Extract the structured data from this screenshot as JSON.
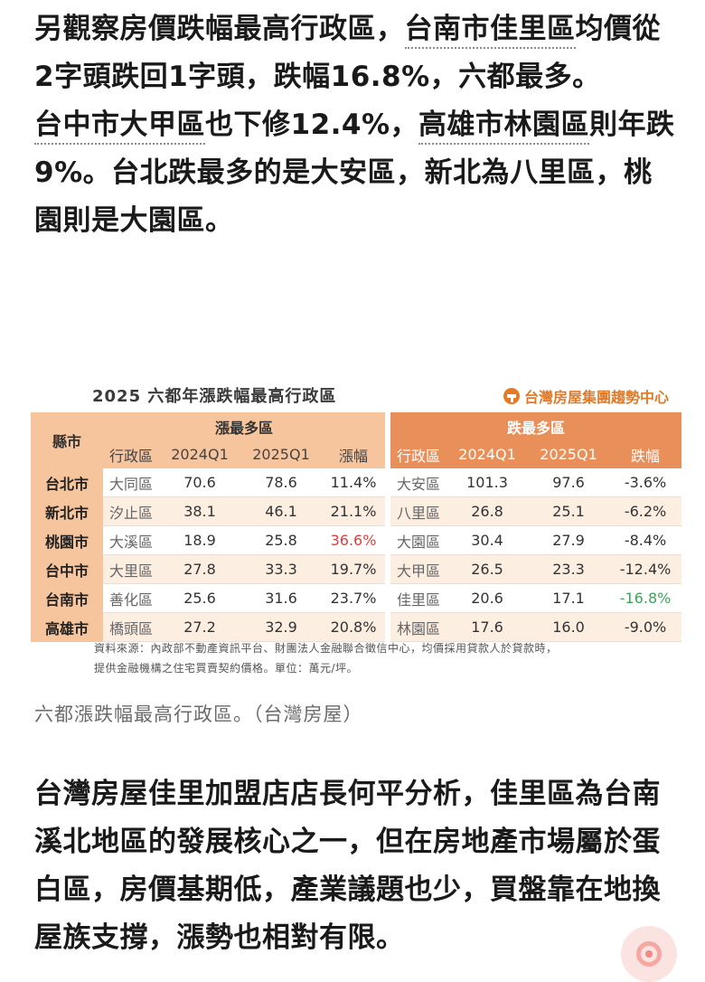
{
  "article": {
    "para1": {
      "t1": "另觀察房價跌幅最高行政區，",
      "link1": "台南市佳里區",
      "t2": "均價從2字頭跌回1字頭，跌幅16.8%，六都最多。",
      "link2": "台中市大甲區",
      "t3": "也下修12.4%，",
      "link3": "高雄市林園區",
      "t4": "則年跌9%。台北跌最多的是大安區，新北為八里區，桃園則是大園區。"
    },
    "para2": "台灣房屋佳里加盟店店長何平分析，佳里區為台南溪北地區的發展核心之一，但在房地產市場屬於蛋白區，房價基期低，產業議題也少，買盤靠在地換屋族支撐，漲勢也相對有限。",
    "caption": "六都漲跌幅最高行政區。（台灣房屋）"
  },
  "figure": {
    "title": "2025 六都年漲跌幅最高行政區",
    "brand": "台灣房屋集團趨勢中心",
    "group_city": "縣市",
    "group_rise": "漲最多區",
    "group_fall": "跌最多區",
    "col_district": "行政區",
    "col_q1": "2024Q1",
    "col_q2": "2025Q1",
    "col_rise": "漲幅",
    "col_fall": "跌幅",
    "rows": [
      {
        "city": "台北市",
        "rd": "大同區",
        "r1": "70.6",
        "r2": "78.6",
        "rp": "11.4%",
        "fd": "大安區",
        "f1": "101.3",
        "f2": "97.6",
        "fp": "-3.6%"
      },
      {
        "city": "新北市",
        "rd": "汐止區",
        "r1": "38.1",
        "r2": "46.1",
        "rp": "21.1%",
        "fd": "八里區",
        "f1": "26.8",
        "f2": "25.1",
        "fp": "-6.2%"
      },
      {
        "city": "桃園市",
        "rd": "大溪區",
        "r1": "18.9",
        "r2": "25.8",
        "rp": "36.6%",
        "fd": "大園區",
        "f1": "30.4",
        "f2": "27.9",
        "fp": "-8.4%"
      },
      {
        "city": "台中市",
        "rd": "大里區",
        "r1": "27.8",
        "r2": "33.3",
        "rp": "19.7%",
        "fd": "大甲區",
        "f1": "26.5",
        "f2": "23.3",
        "fp": "-12.4%"
      },
      {
        "city": "台南市",
        "rd": "善化區",
        "r1": "25.6",
        "r2": "31.6",
        "rp": "23.7%",
        "fd": "佳里區",
        "f1": "20.6",
        "f2": "17.1",
        "fp": "-16.8%"
      },
      {
        "city": "高雄市",
        "rd": "橋頭區",
        "r1": "27.2",
        "r2": "32.9",
        "rp": "20.8%",
        "fd": "林園區",
        "f1": "17.6",
        "f2": "16.0",
        "fp": "-9.0%"
      }
    ],
    "note1": "資料來源：內政部不動產資訊平台、財團法人金融聯合徵信中心，均價採用貸款人於貸款時，",
    "note2": "提供金融機構之住宅買賣契約價格。單位：萬元/坪。",
    "colors": {
      "header_light": "#f7c59d",
      "header_dark": "#e9905a",
      "max_rise": "#d94040",
      "max_fall": "#3fa25a"
    }
  },
  "ui": {
    "floating_button_icon": "circle-ring-icon"
  }
}
